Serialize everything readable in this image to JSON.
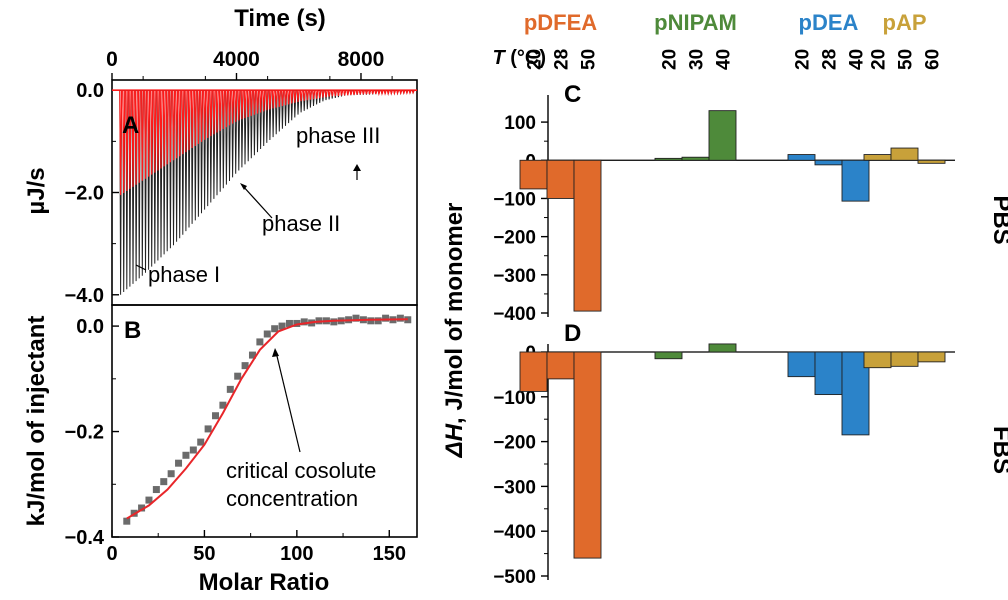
{
  "chart_data": [
    {
      "id": "A",
      "type": "line",
      "panel_label": "A",
      "x_top_label": "Time (s)",
      "x_range": [
        0,
        9800
      ],
      "x_ticks": [
        0,
        4000,
        8000
      ],
      "x_tick_labels": [
        "0",
        "4000",
        "8000"
      ],
      "ylabel": "µJ/s",
      "ylim": [
        -4.2,
        0.2
      ],
      "y_ticks": [
        0.0,
        -2.0,
        -4.0
      ],
      "y_tick_labels": [
        "0.0",
        "−2.0",
        "−4.0"
      ],
      "annotations": [
        "phase I",
        "phase II",
        "phase III"
      ],
      "series": [
        {
          "color": "#222222",
          "peak_envelope": [
            [
              250,
              -4.0
            ],
            [
              1000,
              -3.6
            ],
            [
              2000,
              -3.0
            ],
            [
              3000,
              -2.3
            ],
            [
              4000,
              -1.6
            ],
            [
              5000,
              -1.0
            ],
            [
              6000,
              -0.45
            ],
            [
              6800,
              -0.2
            ],
            [
              7500,
              -0.1
            ],
            [
              9700,
              -0.05
            ]
          ]
        },
        {
          "color": "#ff1a1a",
          "peak_envelope": [
            [
              250,
              -2.05
            ],
            [
              1000,
              -1.75
            ],
            [
              2000,
              -1.35
            ],
            [
              3000,
              -0.95
            ],
            [
              4000,
              -0.6
            ],
            [
              5000,
              -0.38
            ],
            [
              6000,
              -0.22
            ],
            [
              7000,
              -0.12
            ],
            [
              8000,
              -0.08
            ],
            [
              9700,
              -0.05
            ]
          ]
        }
      ]
    },
    {
      "id": "B",
      "type": "scatter",
      "panel_label": "B",
      "xlabel": "Molar Ratio",
      "ylabel": "kJ/mol of injectant",
      "xlim": [
        0,
        165
      ],
      "ylim": [
        -0.4,
        0.04
      ],
      "x_ticks": [
        0,
        50,
        100,
        150
      ],
      "x_tick_labels": [
        "0",
        "50",
        "100",
        "150"
      ],
      "y_ticks": [
        0.0,
        -0.2,
        -0.4
      ],
      "y_tick_labels": [
        "0.0",
        "−0.2",
        "−0.4"
      ],
      "annotation": [
        "critical cosolute",
        "concentration"
      ],
      "points": {
        "x": [
          8,
          12,
          16,
          20,
          24,
          28,
          32,
          36,
          40,
          44,
          48,
          52,
          56,
          60,
          64,
          68,
          72,
          76,
          80,
          84,
          88,
          92,
          96,
          100,
          104,
          108,
          112,
          116,
          120,
          124,
          128,
          132,
          136,
          140,
          144,
          148,
          152,
          156,
          160
        ],
        "y": [
          -0.37,
          -0.355,
          -0.345,
          -0.33,
          -0.31,
          -0.295,
          -0.28,
          -0.26,
          -0.245,
          -0.235,
          -0.22,
          -0.195,
          -0.17,
          -0.15,
          -0.12,
          -0.095,
          -0.075,
          -0.055,
          -0.03,
          -0.015,
          -0.005,
          0.0,
          0.005,
          0.005,
          0.008,
          0.006,
          0.01,
          0.01,
          0.008,
          0.01,
          0.012,
          0.015,
          0.012,
          0.01,
          0.01,
          0.015,
          0.012,
          0.015,
          0.012
        ]
      },
      "fit": {
        "x": [
          8,
          20,
          30,
          40,
          50,
          60,
          70,
          80,
          90,
          100,
          110,
          120,
          140,
          160
        ],
        "y": [
          -0.365,
          -0.34,
          -0.31,
          -0.27,
          -0.225,
          -0.165,
          -0.1,
          -0.045,
          -0.01,
          0.003,
          0.008,
          0.01,
          0.012,
          0.013
        ]
      }
    },
    {
      "id": "C",
      "type": "bar",
      "panel_label": "C",
      "side_label": "PBS",
      "ylim": [
        -400,
        150
      ],
      "y_ticks": [
        100,
        0,
        -100,
        -200,
        -300,
        -400
      ],
      "y_tick_labels": [
        "100",
        "0",
        "−100",
        "−200",
        "−300",
        "−400"
      ],
      "groups": [
        {
          "name": "pDFEA",
          "color": "#e06a2b",
          "temps": [
            "20",
            "28",
            "50"
          ],
          "values": [
            -75,
            -100,
            -395
          ]
        },
        {
          "name": "pNIPAM",
          "color": "#4e8a3a",
          "temps": [
            "20",
            "30",
            "40"
          ],
          "values": [
            5,
            8,
            130
          ]
        },
        {
          "name": "pDEA",
          "color": "#2b83c9",
          "temps": [
            "20",
            "28",
            "40"
          ],
          "values": [
            15,
            -12,
            -107
          ]
        },
        {
          "name": "pAP",
          "color": "#c8a13a",
          "temps": [
            "20",
            "50",
            "60"
          ],
          "values": [
            15,
            32,
            -8
          ]
        }
      ]
    },
    {
      "id": "D",
      "type": "bar",
      "panel_label": "D",
      "side_label": "FBS",
      "ylim": [
        -500,
        0
      ],
      "y_ticks": [
        0,
        -100,
        -200,
        -300,
        -400,
        -500
      ],
      "y_tick_labels": [
        "0",
        "−100",
        "−200",
        "−300",
        "−400",
        "−500"
      ],
      "groups": [
        {
          "name": "pDFEA",
          "color": "#e06a2b",
          "temps": [
            "20",
            "28",
            "50"
          ],
          "values": [
            -88,
            -60,
            -460
          ]
        },
        {
          "name": "pNIPAM",
          "color": "#4e8a3a",
          "temps": [
            "20",
            "30",
            "40"
          ],
          "values": [
            -15,
            0,
            18
          ]
        },
        {
          "name": "pDEA",
          "color": "#2b83c9",
          "temps": [
            "20",
            "28",
            "40"
          ],
          "values": [
            -55,
            -95,
            -185
          ]
        },
        {
          "name": "pAP",
          "color": "#c8a13a",
          "temps": [
            "20",
            "50",
            "60"
          ],
          "values": [
            -35,
            -32,
            -22
          ]
        }
      ]
    }
  ],
  "shared": {
    "temperature_label": "T (°C)",
    "bar_ylabel_main": "ΔH",
    "bar_ylabel_rest": ", J/mol of monomer"
  }
}
